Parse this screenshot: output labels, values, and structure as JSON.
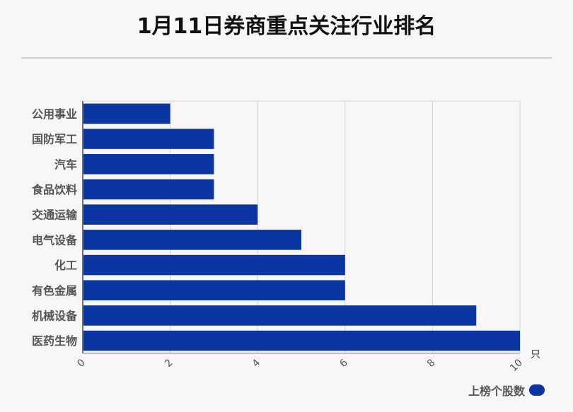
{
  "title": "1月11日券商重点关注行业排名",
  "chart_data": {
    "type": "bar",
    "orientation": "horizontal",
    "title": "1月11日券商重点关注行业排名",
    "categories": [
      "公用事业",
      "国防军工",
      "汽车",
      "食品饮料",
      "交通运输",
      "电气设备",
      "化工",
      "有色金属",
      "机械设备",
      "医药生物"
    ],
    "series": [
      {
        "name": "上榜个股数",
        "values": [
          2,
          3,
          3,
          3,
          4,
          5,
          6,
          6,
          9,
          10
        ]
      }
    ],
    "xlim": [
      0,
      10
    ],
    "xticks": [
      "0",
      "2",
      "4",
      "6",
      "8",
      "10"
    ],
    "xunit": "只",
    "grid": true,
    "legend": "bottom-right",
    "bar_color": "#0b35a0"
  }
}
